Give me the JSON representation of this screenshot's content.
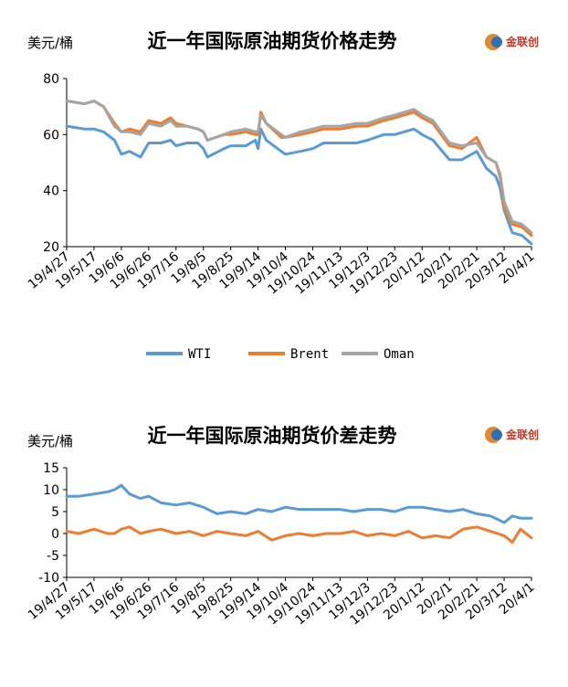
{
  "chart_data": [
    {
      "type": "line",
      "title": "近一年国际原油期货价格走势",
      "ylabel": "美元/桶",
      "ylim": [
        20,
        80
      ],
      "yticks": [
        20,
        40,
        60,
        80
      ],
      "xlim": [
        "19/4/27",
        "20/4/1"
      ],
      "tick_labels": [
        "19/4/27",
        "19/5/17",
        "19/6/6",
        "19/6/26",
        "19/7/16",
        "19/8/5",
        "19/8/25",
        "19/9/14",
        "19/10/4",
        "19/10/24",
        "19/11/13",
        "19/12/3",
        "19/12/23",
        "20/1/12",
        "20/2/1",
        "20/2/21",
        "20/3/12",
        "20/4/1"
      ],
      "grid": false,
      "legend": "bottom",
      "logo": "金联创",
      "series": [
        {
          "name": "WTI",
          "color": "#5b9bd5",
          "x": [
            "19/4/27",
            "19/5/10",
            "19/5/17",
            "19/5/24",
            "19/6/1",
            "19/6/6",
            "19/6/12",
            "19/6/20",
            "19/6/26",
            "19/7/5",
            "19/7/12",
            "19/7/16",
            "19/7/24",
            "19/8/1",
            "19/8/5",
            "19/8/8",
            "19/8/20",
            "19/8/25",
            "19/9/5",
            "19/9/12",
            "19/9/14",
            "19/9/16",
            "19/9/20",
            "19/10/1",
            "19/10/4",
            "19/10/15",
            "19/10/24",
            "19/11/1",
            "19/11/13",
            "19/11/25",
            "19/12/3",
            "19/12/15",
            "19/12/23",
            "20/1/6",
            "20/1/12",
            "20/1/20",
            "20/2/1",
            "20/2/10",
            "20/2/21",
            "20/2/28",
            "20/3/6",
            "20/3/9",
            "20/3/12",
            "20/3/18",
            "20/3/25",
            "20/4/1"
          ],
          "values": [
            63,
            62,
            62,
            61,
            58,
            53,
            54,
            52,
            57,
            57,
            58,
            56,
            57,
            57,
            55,
            52,
            55,
            56,
            56,
            58,
            55,
            62,
            58,
            54,
            53,
            54,
            55,
            57,
            57,
            57,
            58,
            60,
            60,
            62,
            60,
            58,
            51,
            51,
            54,
            48,
            45,
            41,
            33,
            25,
            24,
            21
          ]
        },
        {
          "name": "Brent",
          "color": "#ed7d31",
          "x": [
            "19/4/27",
            "19/5/10",
            "19/5/17",
            "19/5/24",
            "19/6/1",
            "19/6/6",
            "19/6/12",
            "19/6/20",
            "19/6/26",
            "19/7/5",
            "19/7/12",
            "19/7/16",
            "19/7/24",
            "19/8/1",
            "19/8/5",
            "19/8/8",
            "19/8/20",
            "19/8/25",
            "19/9/5",
            "19/9/12",
            "19/9/14",
            "19/9/16",
            "19/9/20",
            "19/10/1",
            "19/10/4",
            "19/10/15",
            "19/10/24",
            "19/11/1",
            "19/11/13",
            "19/11/25",
            "19/12/3",
            "19/12/15",
            "19/12/23",
            "20/1/6",
            "20/1/12",
            "20/1/20",
            "20/2/1",
            "20/2/10",
            "20/2/21",
            "20/2/28",
            "20/3/6",
            "20/3/9",
            "20/3/12",
            "20/3/18",
            "20/3/25",
            "20/4/1"
          ],
          "values": [
            72,
            71,
            72,
            70,
            64,
            61,
            62,
            61,
            65,
            64,
            66,
            64,
            63,
            62,
            61,
            58,
            60,
            60,
            61,
            60,
            60,
            68,
            64,
            59,
            59,
            60,
            61,
            62,
            62,
            63,
            63,
            65,
            66,
            68,
            66,
            64,
            56,
            55,
            59,
            52,
            50,
            45,
            34,
            28,
            27,
            24
          ]
        },
        {
          "name": "Oman",
          "color": "#a5a5a5",
          "x": [
            "19/4/27",
            "19/5/10",
            "19/5/17",
            "19/5/24",
            "19/6/1",
            "19/6/6",
            "19/6/12",
            "19/6/20",
            "19/6/26",
            "19/7/5",
            "19/7/12",
            "19/7/16",
            "19/7/24",
            "19/8/1",
            "19/8/5",
            "19/8/8",
            "19/8/20",
            "19/8/25",
            "19/9/5",
            "19/9/12",
            "19/9/14",
            "19/9/16",
            "19/9/20",
            "19/10/1",
            "19/10/4",
            "19/10/15",
            "19/10/24",
            "19/11/1",
            "19/11/13",
            "19/11/25",
            "19/12/3",
            "19/12/15",
            "19/12/23",
            "20/1/6",
            "20/1/12",
            "20/1/20",
            "20/2/1",
            "20/2/10",
            "20/2/21",
            "20/2/28",
            "20/3/6",
            "20/3/9",
            "20/3/12",
            "20/3/18",
            "20/3/25",
            "20/4/1"
          ],
          "values": [
            72,
            71,
            72,
            70,
            63,
            61,
            61,
            60,
            64,
            63,
            65,
            63,
            63,
            62,
            61,
            58,
            60,
            61,
            62,
            61,
            61,
            67,
            64,
            60,
            59,
            61,
            62,
            63,
            63,
            64,
            64,
            66,
            67,
            69,
            67,
            65,
            57,
            56,
            57,
            52,
            50,
            46,
            36,
            29,
            28,
            25
          ]
        }
      ]
    },
    {
      "type": "line",
      "title": "近一年国际原油期货价差走势",
      "ylabel": "美元/桶",
      "ylim": [
        -10,
        15
      ],
      "yticks": [
        -10,
        -5,
        0,
        5,
        10,
        15
      ],
      "xlim": [
        "19/4/27",
        "20/4/1"
      ],
      "tick_labels": [
        "19/4/27",
        "19/5/17",
        "19/6/6",
        "19/6/26",
        "19/7/16",
        "19/8/5",
        "19/8/25",
        "19/9/14",
        "19/10/4",
        "19/10/24",
        "19/11/13",
        "19/12/3",
        "19/12/23",
        "20/1/12",
        "20/2/1",
        "20/2/21",
        "20/3/12",
        "20/4/1"
      ],
      "grid": false,
      "logo": "金联创",
      "series": [
        {
          "color": "#5b9bd5",
          "x": [
            "19/4/27",
            "19/5/6",
            "19/5/17",
            "19/5/27",
            "19/6/1",
            "19/6/6",
            "19/6/12",
            "19/6/20",
            "19/6/26",
            "19/7/5",
            "19/7/16",
            "19/7/26",
            "19/8/5",
            "19/8/15",
            "19/8/25",
            "19/9/5",
            "19/9/14",
            "19/9/24",
            "19/10/4",
            "19/10/14",
            "19/10/24",
            "19/11/3",
            "19/11/13",
            "19/11/23",
            "19/12/3",
            "19/12/13",
            "19/12/23",
            "20/1/2",
            "20/1/12",
            "20/1/22",
            "20/2/1",
            "20/2/11",
            "20/2/21",
            "20/3/2",
            "20/3/12",
            "20/3/18",
            "20/3/24",
            "20/4/1"
          ],
          "values": [
            8.5,
            8.5,
            9,
            9.5,
            10,
            11,
            9,
            8,
            8.5,
            7,
            6.5,
            7,
            6,
            4.5,
            5,
            4.5,
            5.5,
            5,
            6,
            5.5,
            5.5,
            5.5,
            5.5,
            5,
            5.5,
            5.5,
            5,
            6,
            6,
            5.5,
            5,
            5.5,
            4.5,
            4,
            2.5,
            4,
            3.5,
            3.5
          ]
        },
        {
          "color": "#ed7d31",
          "x": [
            "19/4/27",
            "19/5/6",
            "19/5/17",
            "19/5/27",
            "19/6/1",
            "19/6/6",
            "19/6/12",
            "19/6/20",
            "19/6/26",
            "19/7/5",
            "19/7/16",
            "19/7/26",
            "19/8/5",
            "19/8/15",
            "19/8/25",
            "19/9/5",
            "19/9/14",
            "19/9/24",
            "19/10/4",
            "19/10/14",
            "19/10/24",
            "19/11/3",
            "19/11/13",
            "19/11/23",
            "19/12/3",
            "19/12/13",
            "19/12/23",
            "20/1/2",
            "20/1/12",
            "20/1/22",
            "20/2/1",
            "20/2/11",
            "20/2/21",
            "20/3/2",
            "20/3/12",
            "20/3/18",
            "20/3/24",
            "20/4/1"
          ],
          "values": [
            0.5,
            0,
            1,
            0,
            0,
            1,
            1.5,
            0,
            0.5,
            1,
            0,
            0.5,
            -0.5,
            0.5,
            0,
            -0.5,
            0.5,
            -1.5,
            -0.5,
            0,
            -0.5,
            0,
            0,
            0.5,
            -0.5,
            0,
            -0.5,
            0.5,
            -1,
            -0.5,
            -1,
            1,
            1.5,
            0.5,
            -0.5,
            -2,
            1,
            -1
          ]
        }
      ]
    }
  ]
}
